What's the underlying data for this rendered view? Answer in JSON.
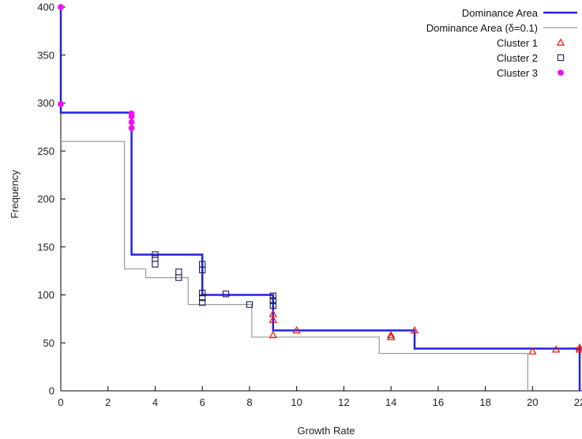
{
  "chart_data": {
    "type": "scatter",
    "title": "",
    "xlabel": "Growth Rate",
    "ylabel": "Frequency",
    "xlim": [
      0,
      22.5
    ],
    "ylim": [
      0,
      400
    ],
    "xticks": [
      0,
      2,
      4,
      6,
      8,
      10,
      12,
      14,
      16,
      18,
      20,
      22
    ],
    "yticks": [
      0,
      50,
      100,
      150,
      200,
      250,
      300,
      350,
      400
    ],
    "grid": false,
    "legend_position": "top-right",
    "lines": [
      {
        "name": "Dominance Area",
        "color": "#2222dd",
        "style": "step",
        "points": [
          [
            0,
            400
          ],
          [
            0,
            290
          ],
          [
            3,
            290
          ],
          [
            3,
            142
          ],
          [
            6,
            142
          ],
          [
            6,
            132
          ],
          [
            6,
            100
          ],
          [
            9,
            100
          ],
          [
            9,
            63
          ],
          [
            15,
            63
          ],
          [
            15,
            44
          ],
          [
            22,
            44
          ],
          [
            22,
            0
          ]
        ]
      },
      {
        "name": "Dominance Area (δ=0.1)",
        "color": "#999999",
        "style": "step",
        "points": [
          [
            0,
            260
          ],
          [
            2.7,
            260
          ],
          [
            2.7,
            127
          ],
          [
            3.6,
            127
          ],
          [
            3.6,
            118
          ],
          [
            5.4,
            118
          ],
          [
            5.4,
            90
          ],
          [
            8.1,
            90
          ],
          [
            8.1,
            56
          ],
          [
            13.5,
            56
          ],
          [
            13.5,
            39
          ],
          [
            19.8,
            39
          ],
          [
            19.8,
            0
          ]
        ]
      }
    ],
    "series": [
      {
        "name": "Cluster 1",
        "marker": "triangle",
        "color": "#ee1111",
        "points": [
          [
            9,
            58
          ],
          [
            9,
            74
          ],
          [
            9,
            80
          ],
          [
            10,
            63
          ],
          [
            14,
            56
          ],
          [
            14,
            58
          ],
          [
            15,
            63
          ],
          [
            20,
            41
          ],
          [
            21,
            43
          ],
          [
            22,
            43
          ],
          [
            22,
            45
          ]
        ]
      },
      {
        "name": "Cluster 2",
        "marker": "square",
        "color": "#1a1a5e",
        "points": [
          [
            4,
            132
          ],
          [
            4,
            138
          ],
          [
            4,
            142
          ],
          [
            5,
            118
          ],
          [
            5,
            124
          ],
          [
            6,
            92
          ],
          [
            6,
            97
          ],
          [
            6,
            102
          ],
          [
            6,
            126
          ],
          [
            6,
            132
          ],
          [
            7,
            101
          ],
          [
            8,
            90
          ],
          [
            9,
            89
          ],
          [
            9,
            94
          ],
          [
            9,
            99
          ]
        ]
      },
      {
        "name": "Cluster 3",
        "marker": "circle",
        "color": "#ee11ee",
        "points": [
          [
            0,
            400
          ],
          [
            0,
            299
          ],
          [
            3,
            274
          ],
          [
            3,
            280
          ],
          [
            3,
            286
          ],
          [
            3,
            289
          ]
        ]
      }
    ]
  }
}
